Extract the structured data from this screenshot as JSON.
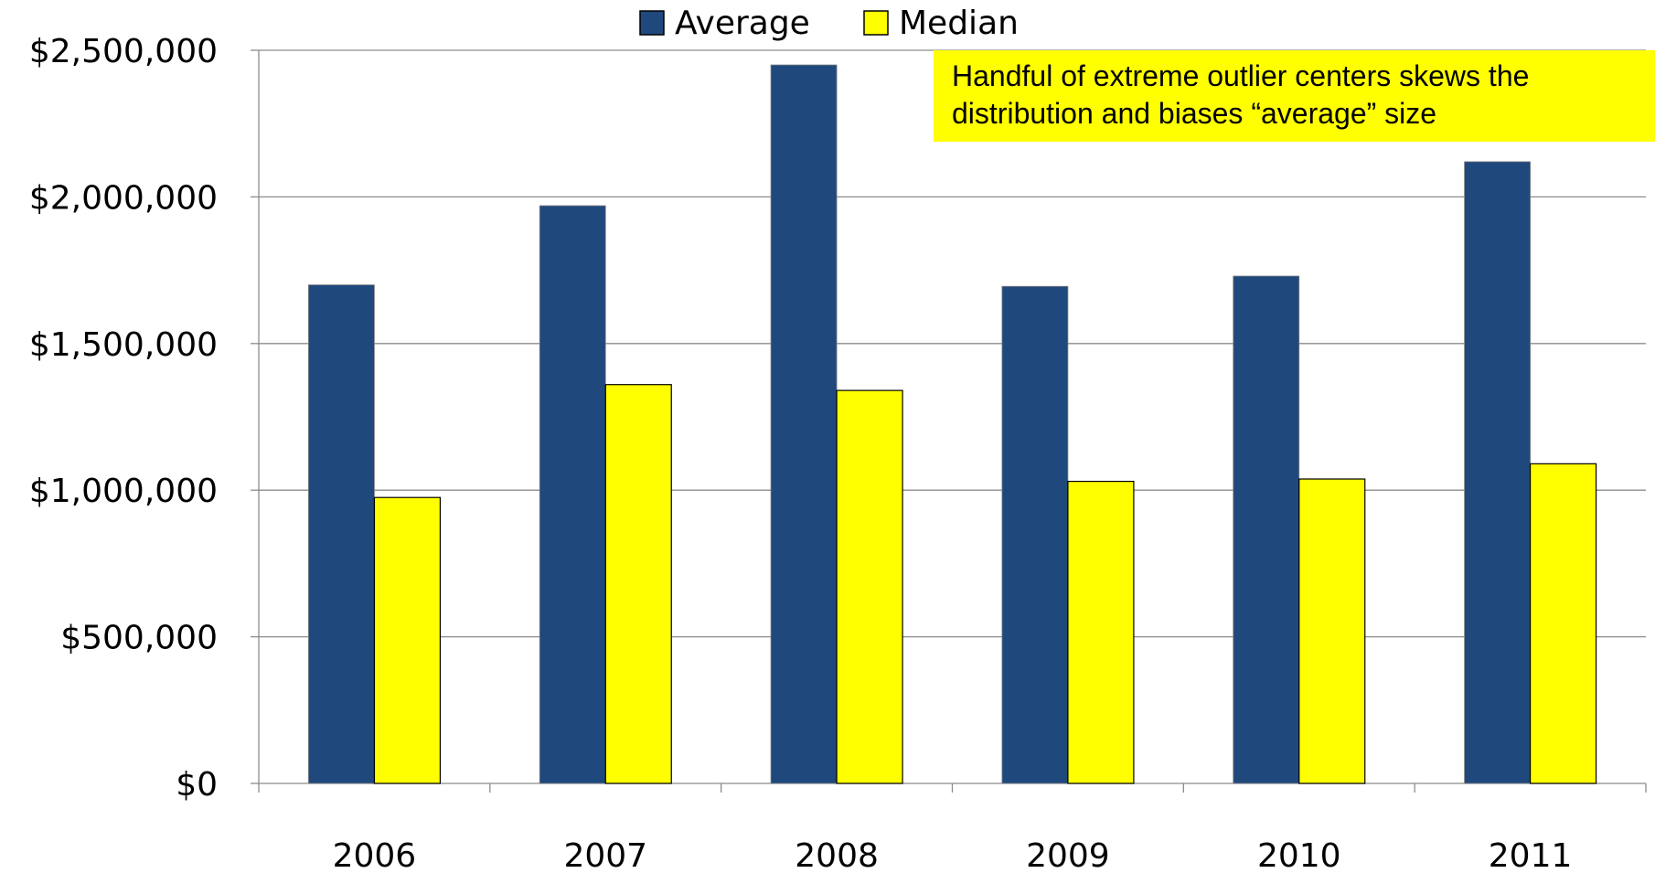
{
  "chart_data": {
    "type": "bar",
    "categories": [
      "2006",
      "2007",
      "2008",
      "2009",
      "2010",
      "2011"
    ],
    "series": [
      {
        "name": "Average",
        "color": "#1f497d",
        "values": [
          1700000,
          1970000,
          2450000,
          1695000,
          1730000,
          2120000
        ]
      },
      {
        "name": "Median",
        "color": "#ffff00",
        "values": [
          975000,
          1360000,
          1340000,
          1030000,
          1038000,
          1090000
        ]
      }
    ],
    "y_ticks": [
      "$0",
      "$500,000",
      "$1,000,000",
      "$1,500,000",
      "$2,000,000",
      "$2,500,000"
    ],
    "y_tick_values": [
      0,
      500000,
      1000000,
      1500000,
      2000000,
      2500000
    ],
    "ylim": [
      0,
      2500000
    ],
    "title": "",
    "xlabel": "",
    "ylabel": "",
    "grid": true,
    "legend_position": "top-center",
    "annotation": {
      "text": "Handful of extreme outlier centers skews the distribution and biases “average” size",
      "background": "#ffff00"
    }
  }
}
